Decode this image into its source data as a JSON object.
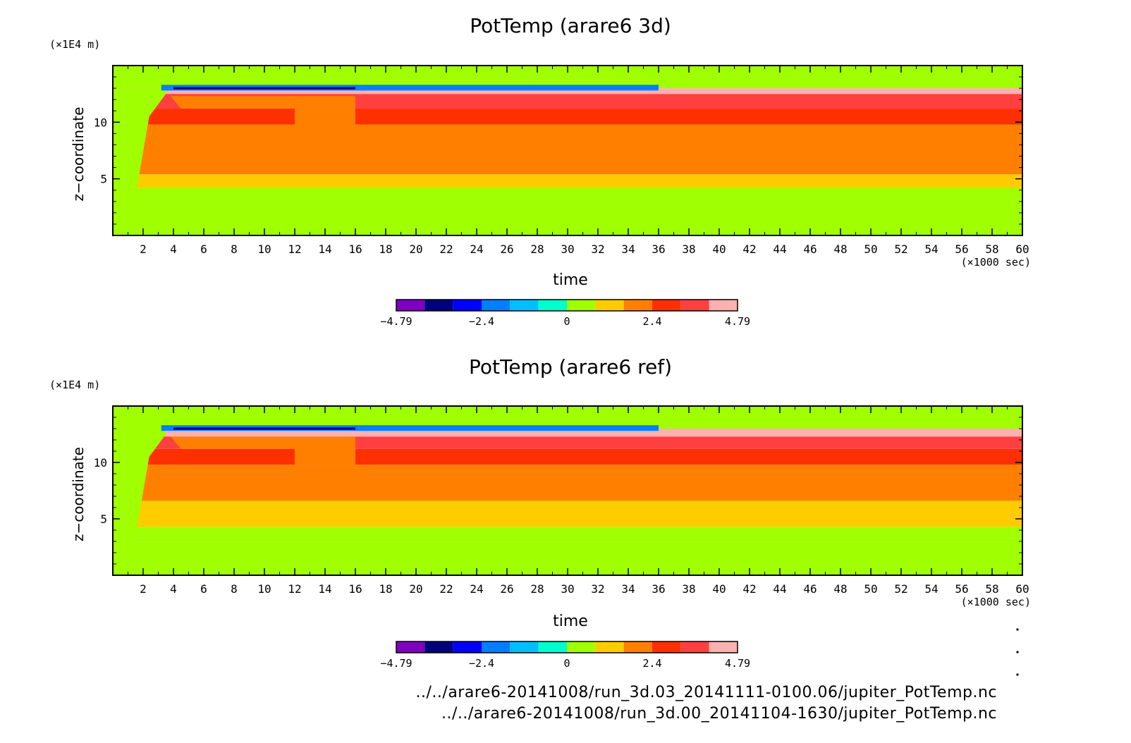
{
  "palette": [
    "#7f00bf",
    "#00007f",
    "#0000ff",
    "#007fff",
    "#00bfff",
    "#00ffcc",
    "#a0ff00",
    "#ffcc00",
    "#ff8000",
    "#ff3000",
    "#ff4040",
    "#ffb0b0"
  ],
  "colorbar": {
    "tick_labels": [
      "−4.79",
      "−2.4",
      "0",
      "2.4",
      "4.79"
    ]
  },
  "chart_data": [
    {
      "type": "heatmap",
      "title": "PotTemp (arare6 3d)",
      "xlabel": "time",
      "ylabel": "z−coordinate",
      "x_unit": "(×1000 sec)",
      "y_unit": "(×1E4 m)",
      "xlim": [
        0,
        60
      ],
      "ylim": [
        0,
        15
      ],
      "x_tick_labels": [
        "2",
        "4",
        "6",
        "8",
        "10",
        "12",
        "14",
        "16",
        "18",
        "20",
        "22",
        "24",
        "26",
        "28",
        "30",
        "32",
        "34",
        "36",
        "38",
        "40",
        "42",
        "44",
        "46",
        "48",
        "50",
        "52",
        "54",
        "56",
        "58",
        "60"
      ],
      "y_tick_labels": [
        "5",
        "10"
      ],
      "color_range": [
        -4.79,
        4.79
      ],
      "bands": [
        {
          "z": [
            0,
            3.2
          ],
          "value": 0.2
        },
        {
          "z": [
            3.2,
            4.2
          ],
          "value": 0.7
        },
        {
          "z": [
            4.2,
            5.4
          ],
          "value": 1.5
        },
        {
          "z": [
            5.4,
            9.8
          ],
          "value": 2.2
        },
        {
          "z": [
            9.8,
            11.2
          ],
          "value": 3.1
        },
        {
          "z": [
            11.2,
            12.5
          ],
          "value": 3.6
        },
        {
          "z": [
            12.5,
            13.0
          ],
          "value": 4.3
        },
        {
          "z": [
            13.0,
            15.0
          ],
          "value": 0.2
        }
      ]
    },
    {
      "type": "heatmap",
      "title": "PotTemp (arare6 ref)",
      "xlabel": "time",
      "ylabel": "z−coordinate",
      "x_unit": "(×1000 sec)",
      "y_unit": "(×1E4 m)",
      "xlim": [
        0,
        60
      ],
      "ylim": [
        0,
        15
      ],
      "x_tick_labels": [
        "2",
        "4",
        "6",
        "8",
        "10",
        "12",
        "14",
        "16",
        "18",
        "20",
        "22",
        "24",
        "26",
        "28",
        "30",
        "32",
        "34",
        "36",
        "38",
        "40",
        "42",
        "44",
        "46",
        "48",
        "50",
        "52",
        "54",
        "56",
        "58",
        "60"
      ],
      "y_tick_labels": [
        "5",
        "10"
      ],
      "color_range": [
        -4.79,
        4.79
      ],
      "bands": [
        {
          "z": [
            0,
            3.3
          ],
          "value": 0.2
        },
        {
          "z": [
            3.3,
            4.3
          ],
          "value": 0.7
        },
        {
          "z": [
            4.3,
            6.6
          ],
          "value": 1.5
        },
        {
          "z": [
            6.6,
            9.8
          ],
          "value": 2.2
        },
        {
          "z": [
            9.8,
            11.2
          ],
          "value": 3.1
        },
        {
          "z": [
            11.2,
            12.3
          ],
          "value": 3.6
        },
        {
          "z": [
            12.3,
            13.0
          ],
          "value": 4.3
        },
        {
          "z": [
            13.0,
            15.0
          ],
          "value": 0.2
        }
      ]
    }
  ],
  "footer": {
    "line1": "../../arare6-20141008/run_3d.03_20141111-0100.06/jupiter_PotTemp.nc",
    "line2": "../../arare6-20141008/run_3d.00_20141104-1630/jupiter_PotTemp.nc"
  }
}
